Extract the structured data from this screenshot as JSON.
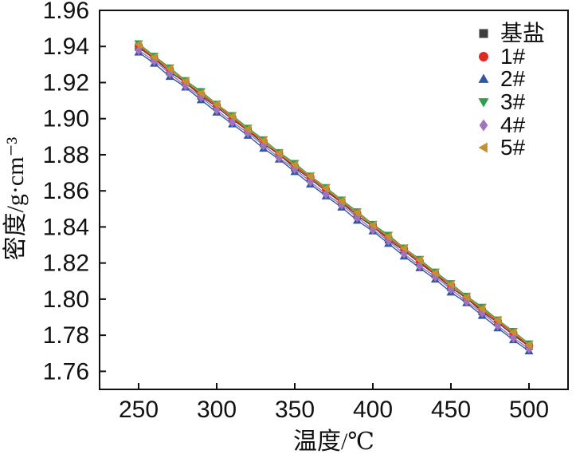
{
  "figure": {
    "background": "#ffffff",
    "frame_color": "#111111",
    "tick_label_color": "#111111"
  },
  "chart_data": {
    "type": "line",
    "title": "",
    "xlabel": "温度/℃",
    "ylabel": "密度/g·cm⁻³",
    "xlim": [
      225,
      525
    ],
    "ylim": [
      1.75,
      1.96
    ],
    "grid": false,
    "legend_position": "top-right-inside",
    "x_ticks": [
      250,
      300,
      350,
      400,
      450,
      500
    ],
    "x_tick_labels": [
      "250",
      "300",
      "350",
      "400",
      "450",
      "500"
    ],
    "y_ticks": [
      1.96,
      1.94,
      1.92,
      1.9,
      1.88,
      1.86,
      1.84,
      1.82,
      1.8,
      1.78,
      1.76
    ],
    "y_tick_labels": [
      "1.96",
      "1.94",
      "1.92",
      "1.90",
      "1.88",
      "1.86",
      "1.84",
      "1.82",
      "1.80",
      "1.78",
      "1.76"
    ],
    "x": [
      250,
      260,
      270,
      280,
      290,
      300,
      310,
      320,
      330,
      340,
      350,
      360,
      370,
      380,
      390,
      400,
      410,
      420,
      430,
      440,
      450,
      460,
      470,
      480,
      490,
      500
    ],
    "series": [
      {
        "name": "基盐",
        "color": "#3F3F3F",
        "marker": "square",
        "values": [
          1.9395,
          1.9332,
          1.926,
          1.92,
          1.9126,
          1.9065,
          1.8997,
          1.8933,
          1.8862,
          1.8801,
          1.8728,
          1.8667,
          1.8598,
          1.8535,
          1.8463,
          1.8403,
          1.833,
          1.8268,
          1.82,
          1.8136,
          1.8065,
          1.8005,
          1.7931,
          1.787,
          1.7801,
          1.7738
        ]
      },
      {
        "name": "1#",
        "color": "#DE2B22",
        "marker": "circle",
        "values": [
          1.9405,
          1.9334,
          1.9274,
          1.9204,
          1.9135,
          1.9074,
          1.9007,
          1.8935,
          1.8876,
          1.8805,
          1.8737,
          1.8676,
          1.8608,
          1.8537,
          1.8477,
          1.8407,
          1.8339,
          1.8277,
          1.821,
          1.8138,
          1.8079,
          1.8009,
          1.794,
          1.7879,
          1.7811,
          1.774
        ]
      },
      {
        "name": "2#",
        "color": "#3057A7",
        "marker": "triangle-up",
        "values": [
          1.9368,
          1.9306,
          1.9233,
          1.9174,
          1.9104,
          1.9035,
          1.897,
          1.8907,
          1.8835,
          1.8775,
          1.8706,
          1.8637,
          1.8571,
          1.8509,
          1.8436,
          1.8377,
          1.8308,
          1.8238,
          1.8173,
          1.811,
          1.8038,
          1.7979,
          1.7909,
          1.784,
          1.7774,
          1.7712
        ]
      },
      {
        "name": "3#",
        "color": "#2F9E49",
        "marker": "triangle-down",
        "values": [
          1.9416,
          1.9347,
          1.9282,
          1.9212,
          1.9151,
          1.9081,
          1.9018,
          1.8948,
          1.8884,
          1.8813,
          1.8753,
          1.8683,
          1.8619,
          1.855,
          1.8485,
          1.8415,
          1.8355,
          1.8284,
          1.8221,
          1.8151,
          1.8087,
          1.8017,
          1.7956,
          1.7886,
          1.7822,
          1.7753
        ]
      },
      {
        "name": "4#",
        "color": "#A272BC",
        "marker": "diamond",
        "values": [
          1.9379,
          1.932,
          1.925,
          1.9182,
          1.9119,
          1.9048,
          1.8981,
          1.8921,
          1.8852,
          1.8783,
          1.8721,
          1.865,
          1.8582,
          1.8523,
          1.8453,
          1.8385,
          1.8323,
          1.8251,
          1.8184,
          1.8124,
          1.8055,
          1.7987,
          1.7924,
          1.7853,
          1.7785,
          1.7726
        ]
      },
      {
        "name": "5#",
        "color": "#C3922E",
        "marker": "triangle-left",
        "values": [
          1.9411,
          1.9341,
          1.9277,
          1.9207,
          1.9143,
          1.9079,
          1.9013,
          1.8942,
          1.8879,
          1.8808,
          1.8745,
          1.8681,
          1.8614,
          1.8544,
          1.848,
          1.841,
          1.8347,
          1.8282,
          1.8216,
          1.8145,
          1.8082,
          1.8012,
          1.7948,
          1.7884,
          1.7817,
          1.7747
        ]
      }
    ]
  }
}
